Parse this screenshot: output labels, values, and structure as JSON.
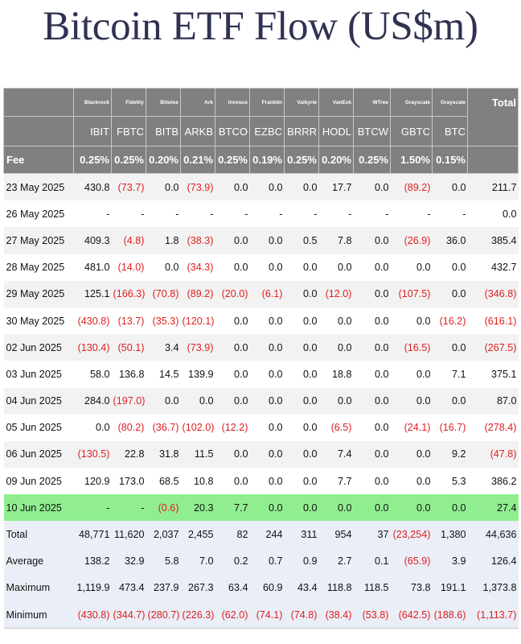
{
  "title": "Bitcoin ETF Flow (US$m)",
  "issuers": [
    "Blackrock",
    "Fidelity",
    "Bitwise",
    "Ark",
    "Invesco",
    "Franklin",
    "Valkyrie",
    "VanEck",
    "WTree",
    "Grayscale",
    "Grayscale"
  ],
  "total_header": "Total",
  "tickers": [
    "IBIT",
    "FBTC",
    "BITB",
    "ARKB",
    "BTCO",
    "EZBC",
    "BRRR",
    "HODL",
    "BTCW",
    "GBTC",
    "BTC"
  ],
  "fee_label": "Fee",
  "fees": [
    "0.25%",
    "0.25%",
    "0.20%",
    "0.21%",
    "0.25%",
    "0.19%",
    "0.25%",
    "0.20%",
    "0.25%",
    "1.50%",
    "0.15%"
  ],
  "rows": [
    {
      "date": "23 May 2025",
      "values": [
        "430.8",
        "(73.7)",
        "0.0",
        "(73.9)",
        "0.0",
        "0.0",
        "0.0",
        "17.7",
        "0.0",
        "(89.2)",
        "0.0"
      ],
      "total": "211.7",
      "style": "alt"
    },
    {
      "date": "26 May 2025",
      "values": [
        "-",
        "-",
        "-",
        "-",
        "-",
        "-",
        "-",
        "-",
        "-",
        "-",
        "-"
      ],
      "total": "0.0",
      "style": "plain"
    },
    {
      "date": "27 May 2025",
      "values": [
        "409.3",
        "(4.8)",
        "1.8",
        "(38.3)",
        "0.0",
        "0.0",
        "0.5",
        "7.8",
        "0.0",
        "(26.9)",
        "36.0"
      ],
      "total": "385.4",
      "style": "alt"
    },
    {
      "date": "28 May 2025",
      "values": [
        "481.0",
        "(14.0)",
        "0.0",
        "(34.3)",
        "0.0",
        "0.0",
        "0.0",
        "0.0",
        "0.0",
        "0.0",
        "0.0"
      ],
      "total": "432.7",
      "style": "plain"
    },
    {
      "date": "29 May 2025",
      "values": [
        "125.1",
        "(166.3)",
        "(70.8)",
        "(89.2)",
        "(20.0)",
        "(6.1)",
        "0.0",
        "(12.0)",
        "0.0",
        "(107.5)",
        "0.0"
      ],
      "total": "(346.8)",
      "style": "alt"
    },
    {
      "date": "30 May 2025",
      "values": [
        "(430.8)",
        "(13.7)",
        "(35.3)",
        "(120.1)",
        "0.0",
        "0.0",
        "0.0",
        "0.0",
        "0.0",
        "0.0",
        "(16.2)"
      ],
      "total": "(616.1)",
      "style": "plain"
    },
    {
      "date": "02 Jun 2025",
      "values": [
        "(130.4)",
        "(50.1)",
        "3.4",
        "(73.9)",
        "0.0",
        "0.0",
        "0.0",
        "0.0",
        "0.0",
        "(16.5)",
        "0.0"
      ],
      "total": "(267.5)",
      "style": "alt"
    },
    {
      "date": "03 Jun 2025",
      "values": [
        "58.0",
        "136.8",
        "14.5",
        "139.9",
        "0.0",
        "0.0",
        "0.0",
        "18.8",
        "0.0",
        "0.0",
        "7.1"
      ],
      "total": "375.1",
      "style": "plain"
    },
    {
      "date": "04 Jun 2025",
      "values": [
        "284.0",
        "(197.0)",
        "0.0",
        "0.0",
        "0.0",
        "0.0",
        "0.0",
        "0.0",
        "0.0",
        "0.0",
        "0.0"
      ],
      "total": "87.0",
      "style": "alt"
    },
    {
      "date": "05 Jun 2025",
      "values": [
        "0.0",
        "(80.2)",
        "(36.7)",
        "(102.0)",
        "(12.2)",
        "0.0",
        "0.0",
        "(6.5)",
        "0.0",
        "(24.1)",
        "(16.7)"
      ],
      "total": "(278.4)",
      "style": "plain"
    },
    {
      "date": "06 Jun 2025",
      "values": [
        "(130.5)",
        "22.8",
        "31.8",
        "11.5",
        "0.0",
        "0.0",
        "0.0",
        "7.4",
        "0.0",
        "0.0",
        "9.2"
      ],
      "total": "(47.8)",
      "style": "alt"
    },
    {
      "date": "09 Jun 2025",
      "values": [
        "120.9",
        "173.0",
        "68.5",
        "10.8",
        "0.0",
        "0.0",
        "0.0",
        "7.7",
        "0.0",
        "0.0",
        "5.3"
      ],
      "total": "386.2",
      "style": "plain"
    },
    {
      "date": "10 Jun 2025",
      "values": [
        "-",
        "-",
        "(0.6)",
        "20.3",
        "7.7",
        "0.0",
        "0.0",
        "0.0",
        "0.0",
        "0.0",
        "0.0"
      ],
      "total": "27.4",
      "style": "hl"
    }
  ],
  "summary": [
    {
      "label": "Total",
      "values": [
        "48,771",
        "11,620",
        "2,037",
        "2,455",
        "82",
        "244",
        "311",
        "954",
        "37",
        "(23,254)",
        "1,380"
      ],
      "total": "44,636"
    },
    {
      "label": "Average",
      "values": [
        "138.2",
        "32.9",
        "5.8",
        "7.0",
        "0.2",
        "0.7",
        "0.9",
        "2.7",
        "0.1",
        "(65.9)",
        "3.9"
      ],
      "total": "126.4"
    },
    {
      "label": "Maximum",
      "values": [
        "1,119.9",
        "473.4",
        "237.9",
        "267.3",
        "63.4",
        "60.9",
        "43.4",
        "118.8",
        "118.5",
        "73.8",
        "191.1"
      ],
      "total": "1,373.8"
    },
    {
      "label": "Minimum",
      "values": [
        "(430.8)",
        "(344.7)",
        "(280.7)",
        "(226.3)",
        "(62.0)",
        "(74.1)",
        "(74.8)",
        "(38.4)",
        "(53.8)",
        "(642.5)",
        "(188.6)"
      ],
      "total": "(1,113.7)"
    }
  ],
  "colors": {
    "header_bg": "#808080",
    "row_alt_bg": "#f2f2f2",
    "highlight_bg": "#90ee90",
    "summary_bg": "#e9eef7",
    "negative": "#e02020",
    "title": "#2f3250"
  }
}
